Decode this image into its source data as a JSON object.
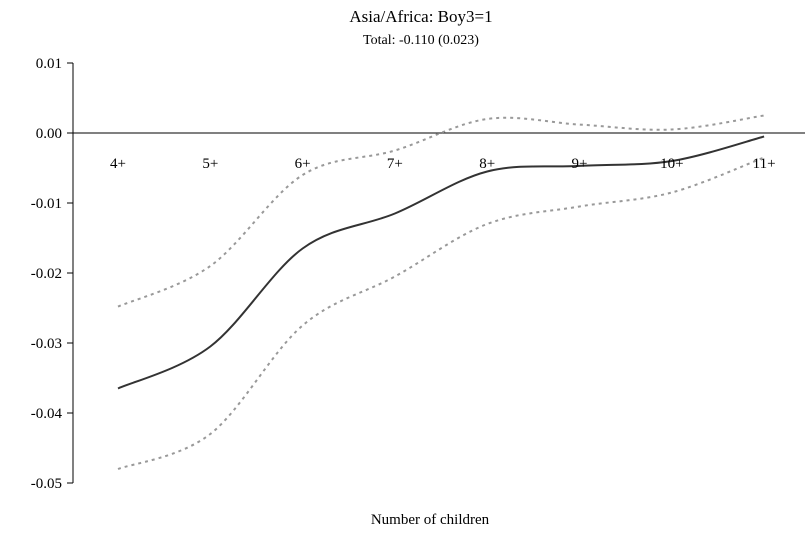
{
  "chart_data": {
    "type": "line",
    "title": "Asia/Africa: Boy3=1",
    "subtitle": "Total: -0.110 (0.023)",
    "xlabel": "Number of children",
    "ylabel": "",
    "categories": [
      "4+",
      "5+",
      "6+",
      "7+",
      "8+",
      "9+",
      "10+",
      "11+"
    ],
    "ylim": [
      -0.05,
      0.01
    ],
    "yticks": [
      -0.05,
      -0.04,
      -0.03,
      -0.02,
      -0.01,
      0.0,
      0.01
    ],
    "ytick_labels": [
      "-0.05",
      "-0.04",
      "-0.03",
      "-0.02",
      "-0.01",
      "0.00",
      "0.01"
    ],
    "grid": false,
    "legend": "none",
    "series": [
      {
        "values": [
          -0.0365,
          -0.0305,
          -0.0165,
          -0.0115,
          -0.0055,
          -0.0047,
          -0.004,
          -0.0005
        ],
        "color": "#333333",
        "style": "solid"
      },
      {
        "values": [
          -0.0248,
          -0.019,
          -0.006,
          -0.0025,
          0.002,
          0.0012,
          0.0005,
          0.0025
        ],
        "color": "#999999",
        "style": "dotted"
      },
      {
        "values": [
          -0.048,
          -0.043,
          -0.0275,
          -0.0205,
          -0.013,
          -0.0105,
          -0.0085,
          -0.0035
        ],
        "color": "#999999",
        "style": "dotted"
      }
    ]
  }
}
